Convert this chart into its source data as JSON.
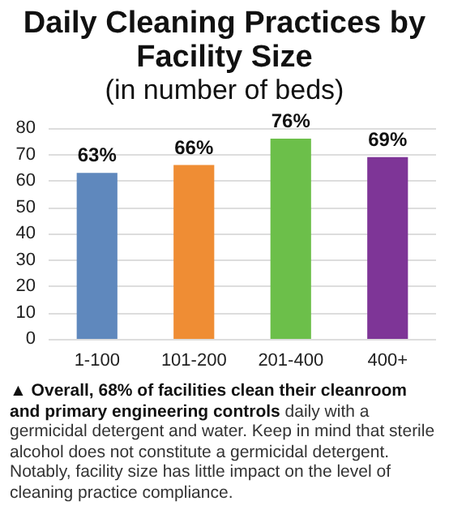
{
  "chart_data": {
    "type": "bar",
    "title": "Daily Cleaning Practices by Facility Size",
    "subtitle": "(in number of beds)",
    "categories": [
      "1-100",
      "101-200",
      "201-400",
      "400+"
    ],
    "values": [
      63,
      66,
      76,
      69
    ],
    "colors": [
      "#5f88bd",
      "#ef8d34",
      "#6cbf4a",
      "#7e3597"
    ],
    "value_labels": [
      "63%",
      "66%",
      "76%",
      "69%"
    ],
    "ylim": [
      0,
      80
    ],
    "yticks": [
      0,
      10,
      20,
      30,
      40,
      50,
      60,
      70,
      80
    ],
    "grid": "y",
    "annotations": [
      "▲ Overall, 68% of facilities clean their cleanroom and primary engineering controls",
      "daily with a germicidal detergent and water. Keep in mind that sterile alcohol does not constitute a germicidal detergent. Notably, facility size has little impact on the level of cleaning practice compliance."
    ]
  }
}
